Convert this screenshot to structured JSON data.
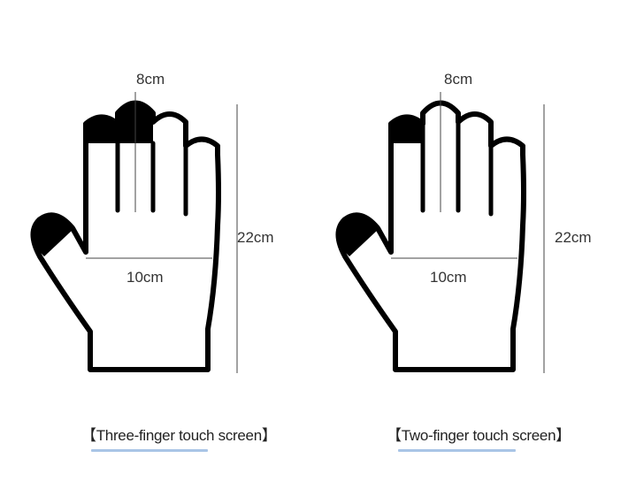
{
  "gloves": [
    {
      "finger_label": "8cm",
      "width_label": "10cm",
      "height_label": "22cm",
      "caption": "Three-finger touch screen",
      "touch_fingers": [
        "thumb",
        "index",
        "middle"
      ]
    },
    {
      "finger_label": "8cm",
      "width_label": "10cm",
      "height_label": "22cm",
      "caption": "Two-finger touch screen",
      "touch_fingers": [
        "thumb",
        "index"
      ]
    }
  ],
  "colors": {
    "outline": "#000000",
    "measure_line": "#444444",
    "underline": "#a9c5e6"
  }
}
